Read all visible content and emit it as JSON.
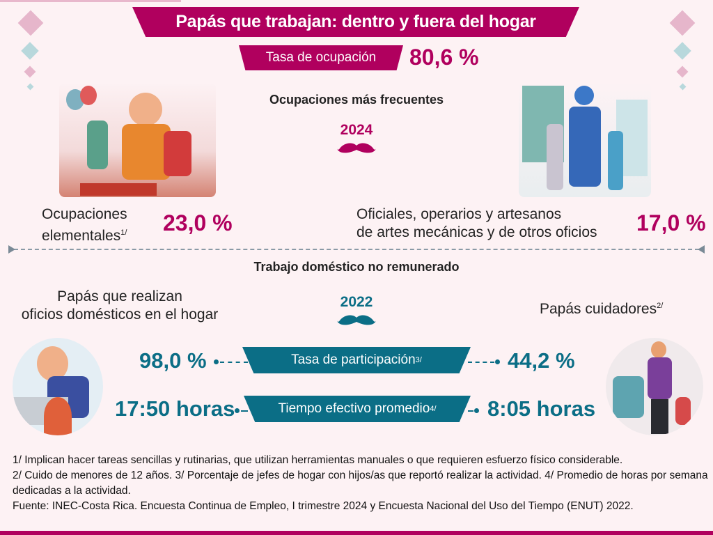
{
  "title": "Papás que trabajan: dentro y fuera del hogar",
  "employment": {
    "label": "Tasa de ocupación",
    "value": "80,6 %"
  },
  "occupations": {
    "heading": "Ocupaciones más frecuentes",
    "year": "2024",
    "left": {
      "label_line1": "Ocupaciones",
      "label_line2": "elementales",
      "note": "1/",
      "value": "23,0 %"
    },
    "right": {
      "label_line1": "Oficiales, operarios y artesanos",
      "label_line2": "de artes mecánicas y de otros oficios",
      "value": "17,0 %"
    }
  },
  "domestic": {
    "heading": "Trabajo doméstico no remunerado",
    "year": "2022",
    "left_label_line1": "Papás que realizan",
    "left_label_line2": "oficios domésticos en el hogar",
    "right_label": "Papás cuidadores",
    "right_note": "2/",
    "rows": [
      {
        "label": "Tasa de participación",
        "note": "3/",
        "left_value": "98,0 %",
        "right_value": "44,2 %"
      },
      {
        "label": "Tiempo efectivo promedio",
        "note": "4/",
        "left_value": "17:50 horas",
        "right_value": "8:05 horas"
      }
    ]
  },
  "footnotes": [
    "1/ Implican hacer tareas sencillas y rutinarias, que utilizan herramientas manuales o que requieren esfuerzo físico considerable.",
    "2/ Cuido de menores de 12 años. 3/ Porcentaje de jefes de hogar con hijos/as que reportó realizar la actividad. 4/ Promedio de horas por semana dedicadas a la actividad.",
    "Fuente: INEC-Costa Rica. Encuesta Continua de Empleo, I trimestre 2024 y Encuesta Nacional del Uso del Tiempo (ENUT) 2022."
  ],
  "colors": {
    "magenta": "#b0005e",
    "teal": "#0b6e86",
    "background": "#fdf2f4"
  },
  "icons": [
    "mustache-icon",
    "diamond-decoration",
    "construction-worker-illustration",
    "mechanic-illustration",
    "dishwashing-illustration",
    "stroller-illustration"
  ]
}
